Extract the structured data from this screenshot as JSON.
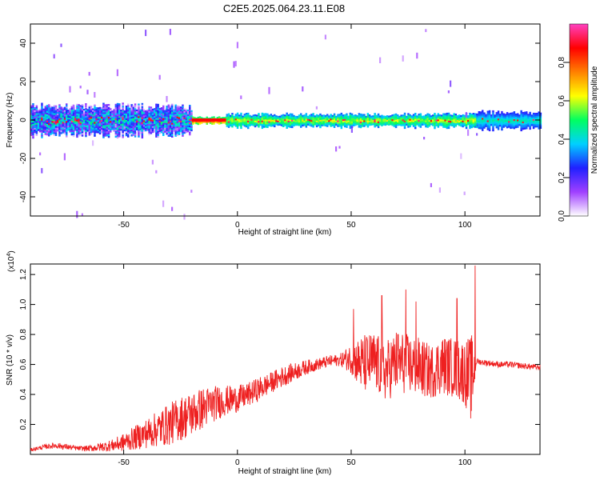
{
  "title": "C2E5.2025.064.23.11.E08",
  "chart_data": [
    {
      "type": "heatmap",
      "name": "spectrogram",
      "xlabel": "Height of straight line (km)",
      "ylabel": "Frequency (Hz)",
      "xlim": [
        -91,
        133
      ],
      "ylim": [
        -50,
        50
      ],
      "xticks": [
        -50,
        0,
        50,
        100
      ],
      "yticks": [
        -40,
        -20,
        0,
        20,
        40
      ],
      "colorbar": {
        "label": "Normalized spectral amplitude",
        "range": [
          0.0,
          1.0
        ],
        "ticks": [
          "0.0",
          "0.2",
          "0.4",
          "0.6",
          "0.8"
        ],
        "tick_values": [
          0.0,
          0.2,
          0.4,
          0.6,
          0.8
        ],
        "colormap": [
          "#ffffff",
          "#a040ff",
          "#2020ff",
          "#00d0ff",
          "#00ff60",
          "#ffff00",
          "#ff8000",
          "#ff0000",
          "#ff40c0"
        ]
      },
      "signal_band": {
        "center_hz": 0,
        "segments": [
          {
            "x": [
              -91,
              -20
            ],
            "halfwidth_hz": 7,
            "amplitude": 0.35,
            "noise": "high"
          },
          {
            "x": [
              -20,
              -5
            ],
            "halfwidth_hz": 1.5,
            "amplitude": 0.9,
            "noise": "low"
          },
          {
            "x": [
              -5,
              105
            ],
            "halfwidth_hz": 3,
            "amplitude": 0.6,
            "noise": "medium"
          },
          {
            "x": [
              105,
              133
            ],
            "halfwidth_hz": 4,
            "amplitude": 0.45,
            "noise": "low"
          }
        ]
      }
    },
    {
      "type": "line",
      "name": "snr",
      "xlabel": "Height of straight line (km)",
      "ylabel": "SNR (10 * v/v)",
      "yscale_label": "(x10",
      "yscale_exp": "4",
      "yscale_close": ")",
      "xlim": [
        -91,
        133
      ],
      "ylim": [
        0,
        1.27
      ],
      "xticks": [
        -50,
        0,
        50,
        100
      ],
      "yticks": [
        "0.2",
        "0.4",
        "0.6",
        "0.8",
        "1.0",
        "1.2"
      ],
      "ytick_values": [
        0.2,
        0.4,
        0.6,
        0.8,
        1.0,
        1.2
      ],
      "color": "#ee2020",
      "series": [
        {
          "name": "SNR",
          "x": [
            -91,
            -85,
            -80,
            -75,
            -70,
            -65,
            -60,
            -55,
            -50,
            -45,
            -40,
            -35,
            -30,
            -25,
            -20,
            -15,
            -10,
            -5,
            0,
            5,
            10,
            15,
            20,
            25,
            30,
            35,
            40,
            45,
            50,
            55,
            60,
            65,
            70,
            75,
            80,
            85,
            90,
            95,
            100,
            103,
            105,
            110,
            115,
            120,
            125,
            133
          ],
          "y": [
            0.03,
            0.05,
            0.06,
            0.05,
            0.04,
            0.04,
            0.05,
            0.06,
            0.08,
            0.11,
            0.14,
            0.17,
            0.2,
            0.24,
            0.27,
            0.31,
            0.34,
            0.36,
            0.37,
            0.4,
            0.44,
            0.48,
            0.52,
            0.55,
            0.58,
            0.6,
            0.62,
            0.63,
            0.64,
            0.6,
            0.62,
            0.55,
            0.62,
            0.6,
            0.58,
            0.55,
            0.6,
            0.58,
            0.55,
            0.5,
            0.62,
            0.61,
            0.6,
            0.6,
            0.59,
            0.58
          ],
          "jitter": [
            0.01,
            0.015,
            0.02,
            0.02,
            0.015,
            0.02,
            0.03,
            0.04,
            0.06,
            0.08,
            0.1,
            0.12,
            0.14,
            0.15,
            0.15,
            0.14,
            0.12,
            0.1,
            0.09,
            0.08,
            0.08,
            0.07,
            0.07,
            0.06,
            0.05,
            0.04,
            0.04,
            0.04,
            0.1,
            0.2,
            0.2,
            0.2,
            0.22,
            0.2,
            0.2,
            0.18,
            0.2,
            0.2,
            0.22,
            0.3,
            0.02,
            0.02,
            0.02,
            0.02,
            0.02,
            0.02
          ]
        }
      ],
      "peaks": [
        {
          "x": 104.5,
          "y": 1.26
        },
        {
          "x": 74,
          "y": 1.1
        },
        {
          "x": 63.5,
          "y": 1.06
        },
        {
          "x": 51,
          "y": 0.97
        },
        {
          "x": 78.5,
          "y": 1.02
        },
        {
          "x": 96.5,
          "y": 1.04
        }
      ]
    }
  ]
}
